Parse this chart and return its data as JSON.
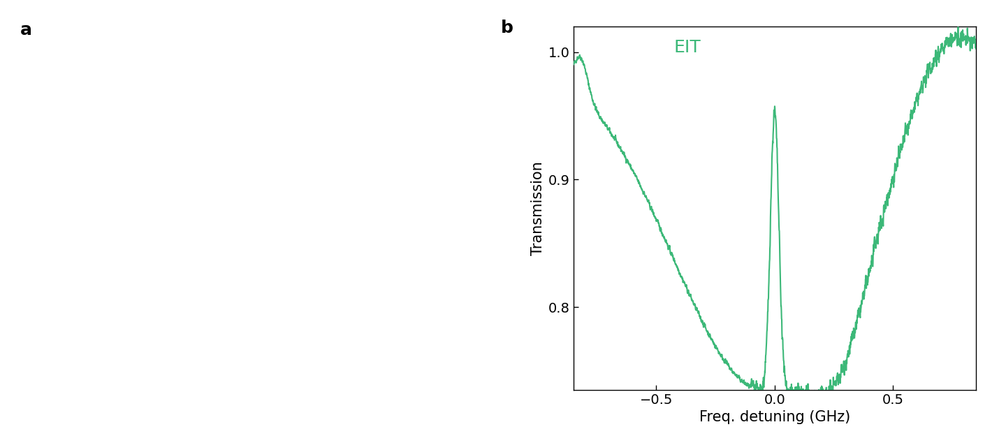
{
  "panel_b": {
    "xlabel": "Freq. detuning (GHz)",
    "ylabel": "Transmission",
    "label_b": "b",
    "label_a": "a",
    "eit_label": "EIT",
    "eit_label_color": "#3cb878",
    "line_color": "#3cb878",
    "line_width": 1.5,
    "xlim": [
      -0.85,
      0.85
    ],
    "ylim": [
      0.735,
      1.02
    ],
    "yticks": [
      0.8,
      0.9,
      1.0
    ],
    "xticks": [
      -0.5,
      0.0,
      0.5
    ],
    "tick_label_fontsize": 14,
    "axis_label_fontsize": 15,
    "panel_label_fontsize": 18,
    "eit_fontsize": 18,
    "background_color": "#ffffff"
  }
}
